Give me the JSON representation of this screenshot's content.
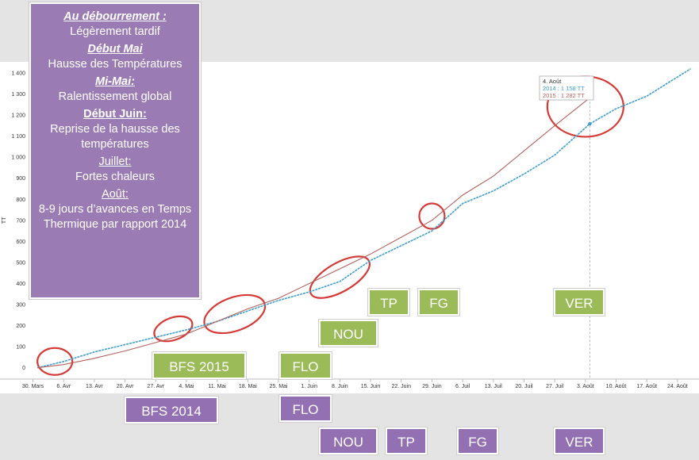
{
  "colors": {
    "series_2014": "#3f9fcb",
    "series_2015": "#b3615e",
    "highlight_ellipse": "#d63a36",
    "stage_2015": "#9bbb59",
    "stage_2014": "#9370b2",
    "info_box": "#9a7bb4"
  },
  "info": [
    {
      "heading": "Au débourrement :",
      "text": "Légèrement tardif"
    },
    {
      "heading": "Début Mai",
      "text": "Hausse des Températures"
    },
    {
      "heading": "Mi-Mai:",
      "text": "Ralentissement global"
    },
    {
      "heading": "Début Juin:",
      "text": "Reprise de la hausse des températures"
    },
    {
      "heading": "Juillet:",
      "text": "Fortes chaleurs"
    },
    {
      "heading": "Août:",
      "text": "8-9 jours d’avances en Temps Thermique par rapport 2014"
    }
  ],
  "stages_2015": [
    {
      "label": "BFS 2015"
    },
    {
      "label": "FLO"
    },
    {
      "label": "NOU"
    },
    {
      "label": "TP"
    },
    {
      "label": "FG"
    },
    {
      "label": "VER"
    }
  ],
  "stages_2014": [
    {
      "label": "BFS 2014"
    },
    {
      "label": "FLO"
    },
    {
      "label": "NOU"
    },
    {
      "label": "TP"
    },
    {
      "label": "FG"
    },
    {
      "label": "VER"
    }
  ],
  "tooltip": {
    "date": "4. Août",
    "line_2014": "2014 :  1 158 TT",
    "line_2015": "2015 :  1 282 TT"
  },
  "chart_data": {
    "type": "line",
    "ylabel": "TT",
    "ylim": [
      -50,
      1430
    ],
    "yticks": [
      0,
      100,
      200,
      300,
      400,
      500,
      600,
      700,
      800,
      900,
      1000,
      1100,
      1200,
      1300,
      1400
    ],
    "ytick_labels": [
      "0",
      "100",
      "200",
      "300",
      "400",
      "500",
      "600",
      "700",
      "800",
      "900",
      "1 000",
      "1 100",
      "1 200",
      "1 300",
      "1 400"
    ],
    "xlim": [
      "2014-03-29",
      "2014-08-28"
    ],
    "xticks": [
      "2014-03-30",
      "2014-04-06",
      "2014-04-13",
      "2014-04-20",
      "2014-04-27",
      "2014-05-04",
      "2014-05-11",
      "2014-05-18",
      "2014-05-25",
      "2014-06-01",
      "2014-06-08",
      "2014-06-15",
      "2014-06-22",
      "2014-06-29",
      "2014-07-06",
      "2014-07-13",
      "2014-07-20",
      "2014-07-27",
      "2014-08-03",
      "2014-08-10",
      "2014-08-17",
      "2014-08-24"
    ],
    "xtick_labels": [
      "30. Mars",
      "6. Avr",
      "13. Avr",
      "20. Avr",
      "27. Avr",
      "4. Mai",
      "11. Mai",
      "18. Mai",
      "25. Mai",
      "1. Juin",
      "8. Juin",
      "15. Juin",
      "22. Juin",
      "29. Juin",
      "6. Juil",
      "13. Juil",
      "20. Juil",
      "27. Juil",
      "3. Août",
      "10. Août",
      "17. Août",
      "24. Août"
    ],
    "grid": false,
    "series": [
      {
        "name": "2014",
        "x": [
          "2014-03-31",
          "2014-04-06",
          "2014-04-13",
          "2014-04-20",
          "2014-04-27",
          "2014-05-04",
          "2014-05-11",
          "2014-05-18",
          "2014-05-25",
          "2014-06-01",
          "2014-06-08",
          "2014-06-15",
          "2014-06-22",
          "2014-06-29",
          "2014-07-06",
          "2014-07-13",
          "2014-07-20",
          "2014-07-27",
          "2014-08-04",
          "2014-08-10",
          "2014-08-17",
          "2014-08-27"
        ],
        "values": [
          0,
          30,
          75,
          110,
          145,
          180,
          220,
          270,
          320,
          360,
          410,
          510,
          580,
          650,
          780,
          840,
          920,
          1010,
          1158,
          1230,
          1290,
          1420
        ]
      },
      {
        "name": "2015",
        "x": [
          "2014-03-31",
          "2014-04-06",
          "2014-04-13",
          "2014-04-20",
          "2014-04-27",
          "2014-05-04",
          "2014-05-11",
          "2014-05-18",
          "2014-05-25",
          "2014-06-01",
          "2014-06-08",
          "2014-06-15",
          "2014-06-22",
          "2014-06-29",
          "2014-07-06",
          "2014-07-13",
          "2014-07-20",
          "2014-07-27",
          "2014-08-04"
        ],
        "values": [
          0,
          15,
          45,
          80,
          120,
          160,
          220,
          280,
          330,
          400,
          470,
          540,
          620,
          700,
          820,
          910,
          1030,
          1150,
          1282
        ]
      }
    ]
  }
}
